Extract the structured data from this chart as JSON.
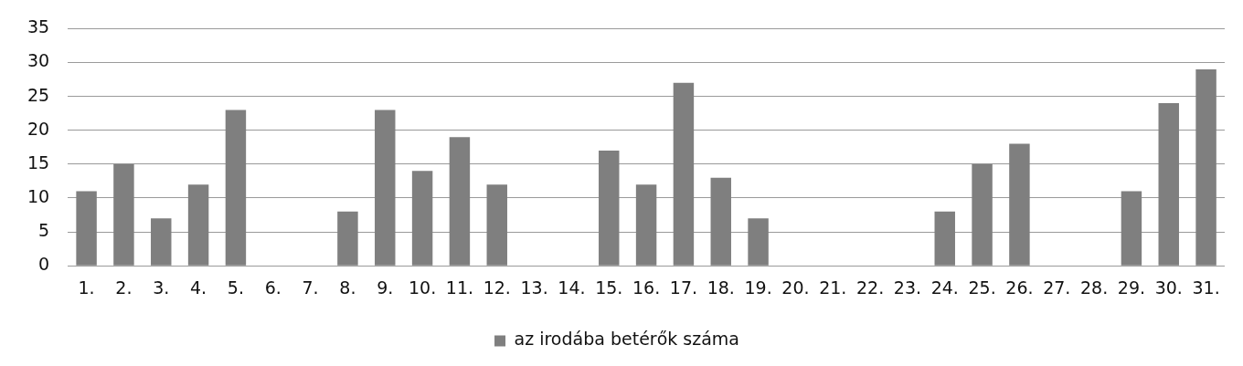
{
  "chart_data": {
    "type": "bar",
    "categories": [
      "1.",
      "2.",
      "3.",
      "4.",
      "5.",
      "6.",
      "7.",
      "8.",
      "9.",
      "10.",
      "11.",
      "12.",
      "13.",
      "14.",
      "15.",
      "16.",
      "17.",
      "18.",
      "19.",
      "20.",
      "21.",
      "22.",
      "23.",
      "24.",
      "25.",
      "26.",
      "27.",
      "28.",
      "29.",
      "30.",
      "31."
    ],
    "series": [
      {
        "name": "az irodába betérők száma",
        "color": "#7f7f7f",
        "values": [
          11,
          15,
          7,
          12,
          23,
          0,
          0,
          8,
          23,
          14,
          19,
          12,
          0,
          0,
          17,
          12,
          27,
          13,
          7,
          0,
          0,
          0,
          0,
          8,
          15,
          18,
          0,
          0,
          11,
          24,
          29
        ]
      }
    ],
    "ylim": [
      0,
      35
    ],
    "yticks": [
      0,
      5,
      10,
      15,
      20,
      25,
      30,
      35
    ],
    "grid": "y",
    "legend": "bottom"
  }
}
